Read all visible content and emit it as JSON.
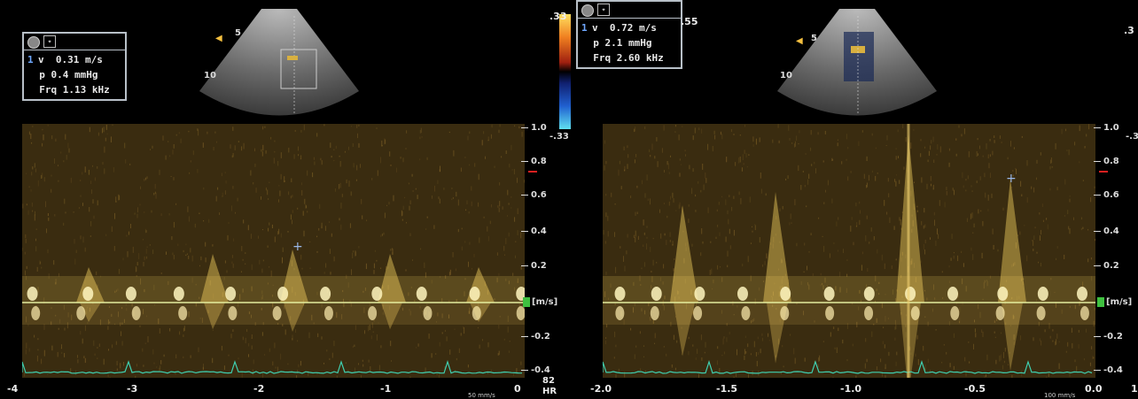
{
  "left_panel": {
    "info": {
      "cursor_no": "1",
      "v_label": "v",
      "v_value": "0.31 m/s",
      "p_label": "p",
      "p_value": "0.4 mmHg",
      "frq_label": "Frq",
      "frq_value": "1.13 kHz"
    },
    "depth_labels": [
      "5",
      "10"
    ],
    "color_scale_max": ".33",
    "y_ticks": [
      "1.0",
      "0.8",
      "0.6",
      "0.4",
      "0.2",
      "[m/s]",
      "-0.2",
      "-0.4"
    ],
    "y_top_extra": "-.33",
    "x_ticks": [
      "-4",
      "-3",
      "-2",
      "-1",
      "0"
    ],
    "sweep_label": "50 mm/s",
    "hr_value": "82",
    "hr_label": "HR"
  },
  "right_panel": {
    "info": {
      "cursor_no": "1",
      "v_label": "v",
      "v_value": "0.72 m/s",
      "p_label": "p",
      "p_value": "2.1 mmHg",
      "frq_label": "Frq",
      "frq_value": "2.60 kHz"
    },
    "depth_labels": [
      "5",
      "10"
    ],
    "color_scale_max": ".55",
    "color_scale_right": ".3",
    "y_ticks": [
      "1.0",
      "0.8",
      "0.6",
      "0.4",
      "0.2",
      "[m/s]",
      "-0.2",
      "-0.4"
    ],
    "y_top_extra": "-.3",
    "x_ticks": [
      "-2.0",
      "-1.5",
      "-1.0",
      "-0.5",
      "0.0"
    ],
    "sweep_label": "100 mm/s",
    "edge_label": "1"
  },
  "colors": {
    "doppler": "#f5d060",
    "ecg": "#3fd0b0",
    "baseline": "#e8f0a0",
    "velocity_marker": "#e02020",
    "unit_marker": "#3fc040"
  }
}
